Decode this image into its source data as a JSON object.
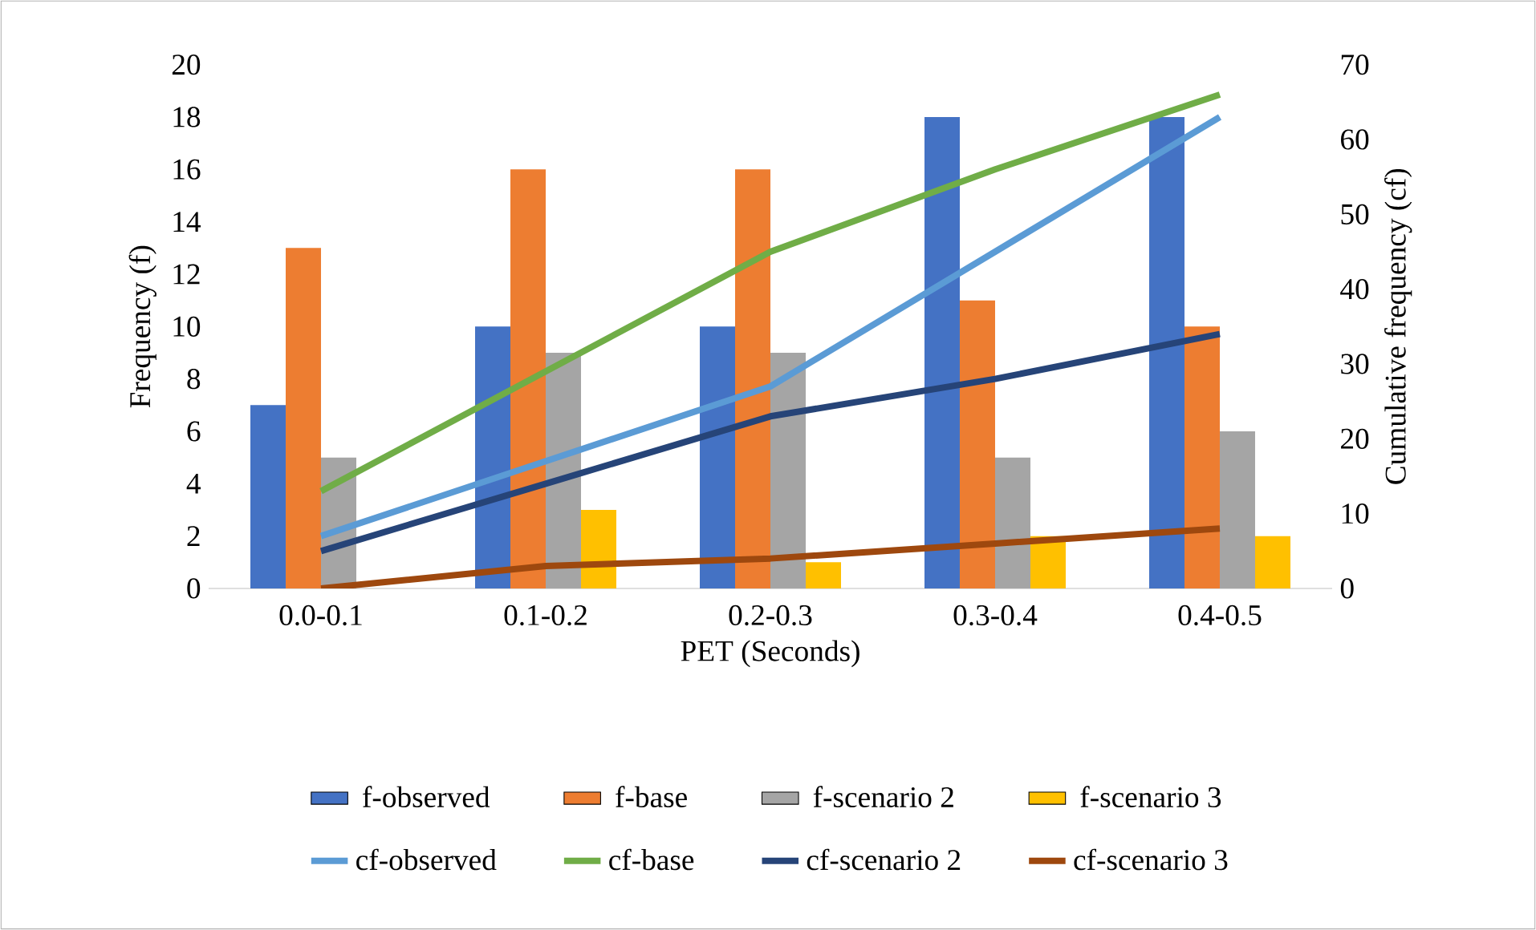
{
  "chart_data": {
    "type": "bar",
    "xlabel": "PET (Seconds)",
    "ylabel": "Frequency (f)",
    "y2label": "Cumulative frequency (cf)",
    "categories": [
      "0.0-0.1",
      "0.1-0.2",
      "0.2-0.3",
      "0.3-0.4",
      "0.4-0.5"
    ],
    "ylim": [
      0,
      20
    ],
    "yticks": [
      0,
      2,
      4,
      6,
      8,
      10,
      12,
      14,
      16,
      18,
      20
    ],
    "y2lim": [
      0,
      70
    ],
    "y2ticks": [
      0,
      10,
      20,
      30,
      40,
      50,
      60,
      70
    ],
    "legend": "bottom",
    "series": [
      {
        "name": "f-observed",
        "color": "#4472c4",
        "values": [
          7,
          10,
          10,
          18,
          18
        ]
      },
      {
        "name": "f-base",
        "color": "#ed7d31",
        "values": [
          13,
          16,
          16,
          11,
          10
        ]
      },
      {
        "name": "f-scenario 2",
        "color": "#a5a5a5",
        "values": [
          5,
          9,
          9,
          5,
          6
        ]
      },
      {
        "name": "f-scenario 3",
        "color": "#ffc000",
        "values": [
          0,
          3,
          1,
          2,
          2
        ]
      },
      {
        "name": "cf-observed",
        "type": "line",
        "axis": "y2",
        "color": "#5b9bd5",
        "values": [
          7,
          17,
          27,
          45,
          63
        ]
      },
      {
        "name": "cf-base",
        "type": "line",
        "axis": "y2",
        "color": "#70ad47",
        "values": [
          13,
          29,
          45,
          56,
          66
        ]
      },
      {
        "name": "cf-scenario 2",
        "type": "line",
        "axis": "y2",
        "color": "#264478",
        "values": [
          5,
          14,
          23,
          28,
          34
        ]
      },
      {
        "name": "cf-scenario 3",
        "type": "line",
        "axis": "y2",
        "color": "#9e480e",
        "values": [
          0,
          3,
          4,
          6,
          8
        ]
      }
    ]
  }
}
